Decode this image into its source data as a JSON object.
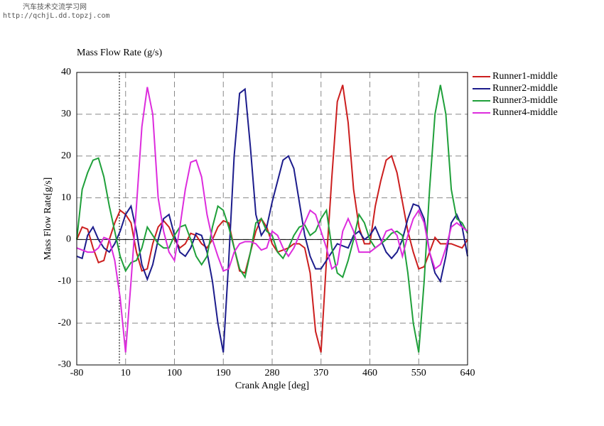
{
  "watermark": {
    "site": "汽车技术交流学习网",
    "url": "http://qchjL.dd.topzj.com"
  },
  "chart_data": {
    "type": "line",
    "title": "Mass Flow Rate (g/s)",
    "x_label": "Crank Angle [deg]",
    "y_label": "Mass Flow Rate[g/s]",
    "x": [
      -80,
      -70,
      -60,
      -50,
      -40,
      -30,
      -20,
      -10,
      0,
      10,
      20,
      30,
      40,
      50,
      60,
      70,
      80,
      90,
      100,
      110,
      120,
      130,
      140,
      150,
      160,
      170,
      180,
      190,
      200,
      210,
      220,
      230,
      240,
      250,
      260,
      270,
      280,
      290,
      300,
      310,
      320,
      330,
      340,
      350,
      360,
      370,
      380,
      390,
      400,
      410,
      420,
      430,
      440,
      450,
      460,
      470,
      480,
      490,
      500,
      510,
      520,
      530,
      540,
      550,
      560,
      570,
      580,
      590,
      600,
      610,
      620,
      630,
      640
    ],
    "series": [
      {
        "name": "Runner1-middle",
        "color": "#cc1f1f",
        "values": [
          0,
          3,
          2.5,
          -2,
          -5.5,
          -5,
          0,
          4,
          7,
          6,
          4,
          -3,
          -7.5,
          -7,
          -1,
          3,
          4.5,
          3,
          0,
          -2,
          -1,
          1.5,
          1,
          -1,
          -2,
          0,
          3,
          4.5,
          4,
          -2,
          -7.5,
          -8,
          -3,
          2,
          5,
          3,
          -1,
          -3,
          -2.5,
          -2,
          -1,
          -1,
          -2,
          -8,
          -22,
          -27,
          -5,
          15,
          33,
          37,
          28,
          12,
          3,
          -1,
          -1,
          8,
          14,
          19,
          20,
          16,
          9,
          2,
          -3,
          -7,
          -6.5,
          -3,
          0.5,
          -1,
          -1,
          -1,
          -1.5,
          -2,
          0
        ]
      },
      {
        "name": "Runner2-middle",
        "color": "#1c1c8c",
        "values": [
          -4,
          -4.5,
          1,
          3,
          0,
          -2,
          -3,
          -1,
          2,
          6,
          8,
          2,
          -6,
          -9.5,
          -6,
          0,
          5,
          6,
          1,
          -3,
          -4,
          -2,
          1.5,
          1,
          -3,
          -10,
          -20,
          -27,
          -5,
          20,
          35,
          36,
          22,
          6,
          1,
          3,
          9,
          14,
          19,
          20,
          17,
          9,
          1,
          -4,
          -7,
          -7,
          -5,
          -3,
          -1,
          -1.5,
          -2,
          1,
          2,
          0,
          1,
          3,
          0,
          -3,
          -4.5,
          -3,
          0,
          5,
          8.5,
          8,
          5,
          -3,
          -8,
          -10,
          -4,
          4,
          6,
          3,
          -4
        ]
      },
      {
        "name": "Runner3-middle",
        "color": "#1fa03a",
        "values": [
          0,
          12,
          16,
          19,
          19.5,
          15,
          8,
          2,
          -4,
          -7.5,
          -5.5,
          -5,
          -2,
          3,
          1,
          -1,
          -2,
          -2,
          1,
          3,
          3.5,
          0,
          -4,
          -6,
          -4,
          3,
          8,
          7,
          3,
          -2,
          -7,
          -9,
          -3,
          4,
          5,
          2,
          1,
          -3,
          -4.5,
          -2,
          1,
          3,
          3.5,
          1,
          2,
          5,
          7,
          -2,
          -8,
          -9,
          -5,
          0,
          6,
          4,
          0,
          -2,
          -1,
          0,
          1.5,
          2,
          1,
          -8,
          -20,
          -27,
          -10,
          12,
          30,
          37,
          30,
          12,
          5,
          4,
          1.5
        ]
      },
      {
        "name": "Runner4-middle",
        "color": "#dd2cdd",
        "values": [
          -2,
          -2.5,
          -3,
          -3,
          -2,
          0.5,
          0,
          -5,
          -14,
          -27,
          -10,
          8,
          27,
          36.5,
          30,
          10,
          2,
          -3,
          -5,
          3,
          12,
          18.5,
          19,
          15,
          6,
          0,
          -4,
          -7.5,
          -7,
          -3,
          -1,
          -0.5,
          -0.5,
          -1,
          -2.5,
          -2,
          2,
          1,
          -2,
          -4,
          -2,
          1,
          4,
          7,
          6,
          2,
          -2,
          -7,
          -6,
          2,
          5,
          2,
          -3,
          -3,
          -3,
          -2,
          -1,
          2,
          2.5,
          1,
          -4,
          1,
          5,
          7,
          4,
          -3,
          -7,
          -6,
          -2,
          3,
          4,
          3,
          2
        ]
      }
    ],
    "xlim": [
      -80,
      640
    ],
    "xticks": [
      -80,
      10,
      100,
      190,
      280,
      370,
      460,
      550,
      640
    ],
    "ylim": [
      -30,
      40
    ],
    "yticks": [
      -30,
      -20,
      -10,
      0,
      10,
      20,
      30,
      40
    ],
    "grid": true,
    "legend": "right"
  }
}
